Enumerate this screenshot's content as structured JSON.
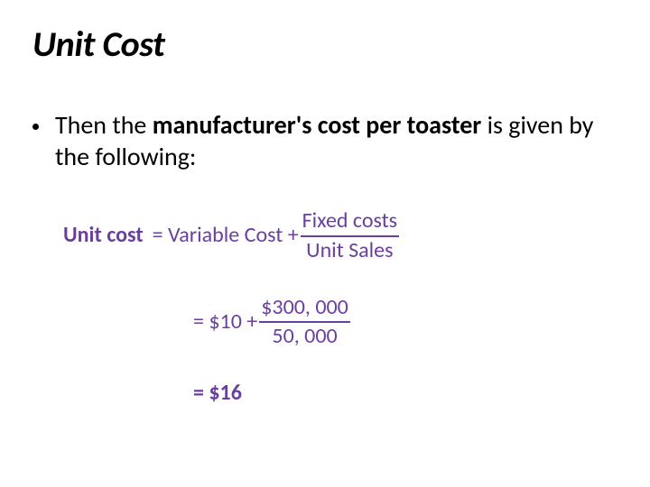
{
  "colors": {
    "text": "#000000",
    "bullet": "#000000",
    "formula": "#6b3fa0",
    "underline": "#6b3fa0"
  },
  "title": "Unit Cost",
  "bullet": {
    "pre": "Then the ",
    "bold": "manufacturer's cost per toaster ",
    "post": "is given by the following:"
  },
  "f1": {
    "label": "Unit cost ",
    "mid": "= Variable Cost + ",
    "num": "Fixed costs",
    "den": "Unit Sales"
  },
  "f2": {
    "mid": "= $10 + ",
    "num": "$300, 000",
    "den": "50, 000"
  },
  "f3": {
    "text": "= $16"
  }
}
